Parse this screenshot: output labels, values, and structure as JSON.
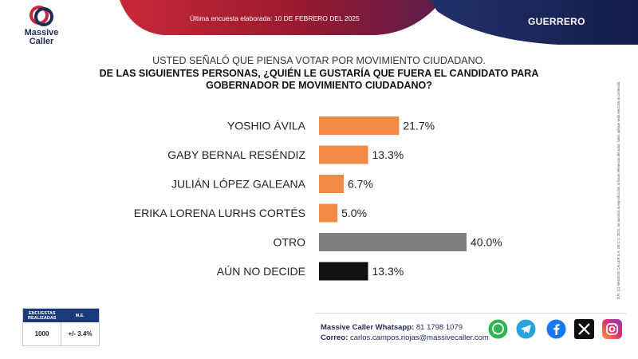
{
  "header": {
    "brand_line1": "Massive",
    "brand_line2": "Caller",
    "survey_date": "Última encuesta elaborada: 10 DE FEBRERO DEL 2025",
    "state": "GUERRERO"
  },
  "question": {
    "line1": "USTED SEÑALÓ QUE PIENSA VOTAR POR MOVIMIENTO CIUDADANO.",
    "line2": "DE LAS SIGUIENTES PERSONAS, ¿QUIÉN LE GUSTARÍA QUE FUERA EL CANDIDATO PARA GOBERNADOR DE MOVIMIENTO CIUDADANO?"
  },
  "chart_data": {
    "type": "bar",
    "orientation": "horizontal",
    "categories": [
      "YOSHIO ÁVILA",
      "GABY BERNAL RESÉNDIZ",
      "JULIÁN LÓPEZ GALEANA",
      "ERIKA LORENA LURHS CORTÉS",
      "OTRO",
      "AÚN NO DECIDE"
    ],
    "values": [
      21.7,
      13.3,
      6.7,
      5.0,
      40.0,
      13.3
    ],
    "labels": [
      "21.7%",
      "13.3%",
      "6.7%",
      "5.0%",
      "40.0%",
      "13.3%"
    ],
    "colors": [
      "#f08a45",
      "#f08a45",
      "#f08a45",
      "#f08a45",
      "#7f7f7f",
      "#111111"
    ],
    "xlim": [
      0,
      40
    ]
  },
  "side_note": "D.R. (C) MASSIVE CALLER S.A. DE C.V. 2024. Se autoriza la reproducción al hacer referencia del autor, salvo aplique veda electoral al contenido.",
  "methodology": {
    "surveys_label": "ENCUESTAS REALIZADAS",
    "surveys_value": "1000",
    "me_label": "M.E.",
    "me_value": "+/- 3.4%"
  },
  "contact": {
    "whatsapp_label": "Massive Caller Whatsapp:",
    "whatsapp_value": "81 1798 1079",
    "email_label": "Correo:",
    "email_value": "carlos.campos.riojas@massivecaller.com"
  },
  "social_icons": [
    "whatsapp-icon",
    "telegram-icon",
    "facebook-icon",
    "x-icon",
    "instagram-icon"
  ],
  "colors": {
    "brand_navy": "#1a2a6c",
    "brand_red": "#b51f2e",
    "bar_orange": "#f08a45",
    "bar_gray": "#7f7f7f",
    "bar_black": "#111111"
  }
}
